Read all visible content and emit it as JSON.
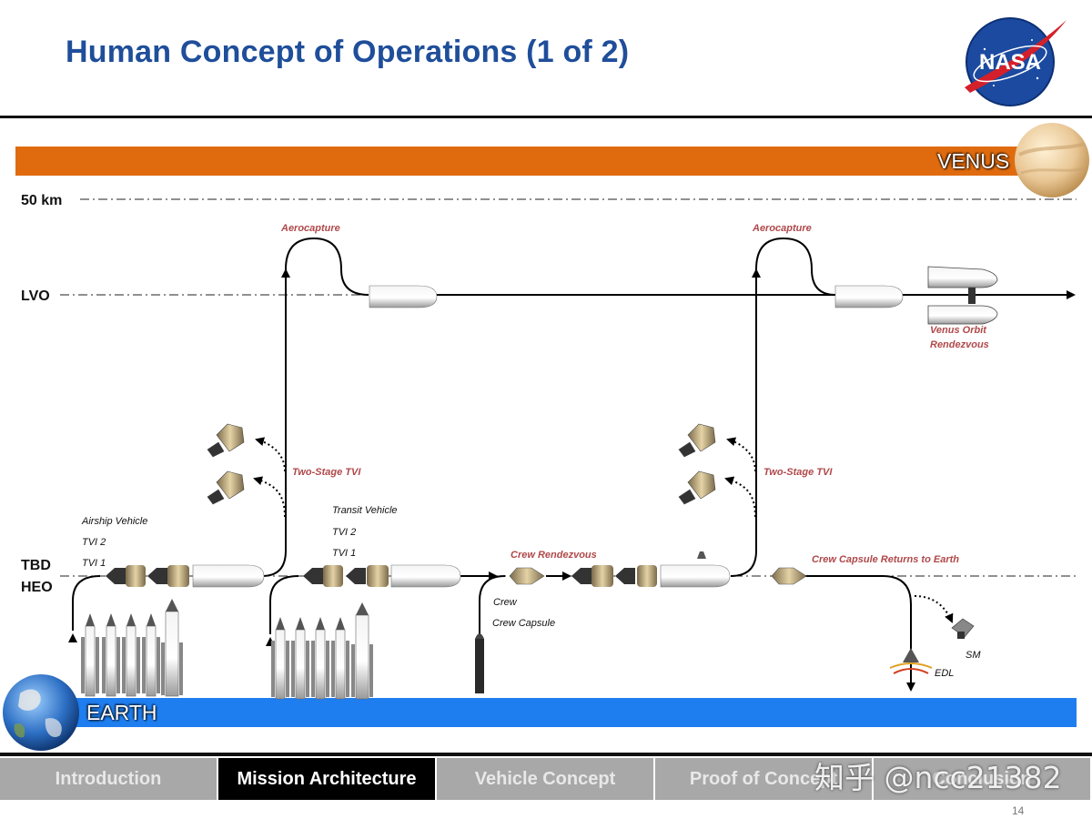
{
  "header": {
    "title": "Human Concept of Operations (1 of 2)",
    "logo_text": "NASA"
  },
  "bands": {
    "venus": "VENUS",
    "earth": "EARTH"
  },
  "levels": {
    "km50": "50 km",
    "lvo": "LVO",
    "tbd": "TBD",
    "heo": "HEO"
  },
  "labels": {
    "aerocapture_1": "Aerocapture",
    "aerocapture_2": "Aerocapture",
    "two_stage_tvi_1": "Two-Stage TVI",
    "two_stage_tvi_2": "Two-Stage TVI",
    "airship_vehicle": "Airship Vehicle",
    "tvi2_a": "TVI 2",
    "tvi1_a": "TVI 1",
    "transit_vehicle": "Transit Vehicle",
    "tvi2_b": "TVI 2",
    "tvi1_b": "TVI 1",
    "crew_rendezvous": "Crew Rendezvous",
    "crew": "Crew",
    "crew_capsule": "Crew Capsule",
    "crew_capsule_returns": "Crew Capsule Returns to Earth",
    "venus_orbit_rendezvous_1": "Venus Orbit",
    "venus_orbit_rendezvous_2": "Rendezvous",
    "sm": "SM",
    "edl": "EDL"
  },
  "nav": {
    "tabs": [
      "Introduction",
      "Mission Architecture",
      "Vehicle Concept",
      "Proof of Concept",
      "Conclusion"
    ],
    "active": "Mission Architecture"
  },
  "page_number": "14",
  "watermark": "知乎 @ncc21382",
  "colors": {
    "venus_band": "#e06b0e",
    "earth_band": "#1e7ef0",
    "title": "#1f4e9a",
    "callout": "#b0484a"
  }
}
